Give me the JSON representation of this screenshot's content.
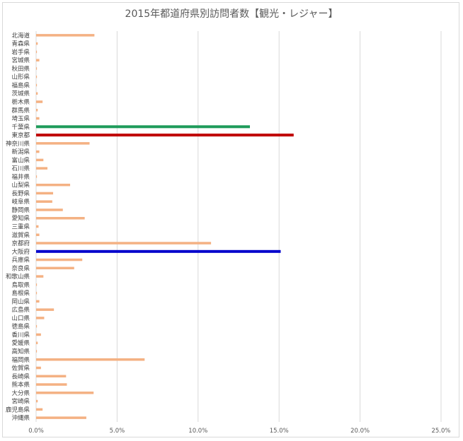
{
  "chart_data": {
    "type": "bar",
    "orientation": "horizontal",
    "title": "2015年都道府県別訪問者数【観光・レジャー】",
    "xlim": [
      0,
      25
    ],
    "x_ticks": [
      "0.0%",
      "5.0%",
      "10.0%",
      "15.0%",
      "20.0%",
      "25.0%"
    ],
    "grid": true,
    "default_color": "#f4b183",
    "categories": [
      "北海道",
      "青森県",
      "岩手県",
      "宮城県",
      "秋田県",
      "山形県",
      "福島県",
      "茨城県",
      "栃木県",
      "群馬県",
      "埼玉県",
      "千葉県",
      "東京都",
      "神奈川県",
      "新潟県",
      "富山県",
      "石川県",
      "福井県",
      "山梨県",
      "長野県",
      "岐阜県",
      "静岡県",
      "愛知県",
      "三重県",
      "滋賀県",
      "京都府",
      "大阪府",
      "兵庫県",
      "奈良県",
      "和歌山県",
      "鳥取県",
      "島根県",
      "岡山県",
      "広島県",
      "山口県",
      "徳島県",
      "香川県",
      "愛媛県",
      "高知県",
      "福岡県",
      "佐賀県",
      "長崎県",
      "熊本県",
      "大分県",
      "宮崎県",
      "鹿児島県",
      "沖縄県"
    ],
    "values": [
      3.6,
      0.1,
      0.05,
      0.2,
      0.05,
      0.05,
      0.05,
      0.1,
      0.4,
      0.1,
      0.2,
      13.2,
      15.9,
      3.3,
      0.2,
      0.45,
      0.7,
      0.05,
      2.1,
      1.05,
      1.0,
      1.65,
      3.0,
      0.15,
      0.2,
      10.8,
      15.1,
      2.85,
      2.35,
      0.45,
      0.05,
      0.05,
      0.2,
      1.1,
      0.5,
      0.05,
      0.3,
      0.1,
      0.05,
      6.7,
      0.3,
      1.85,
      1.9,
      3.55,
      0.1,
      0.4,
      3.1
    ],
    "highlights": [
      {
        "category": "千葉県",
        "color": "#1e9b5a"
      },
      {
        "category": "東京都",
        "color": "#c00000"
      },
      {
        "category": "大阪府",
        "color": "#0000cc"
      }
    ]
  }
}
